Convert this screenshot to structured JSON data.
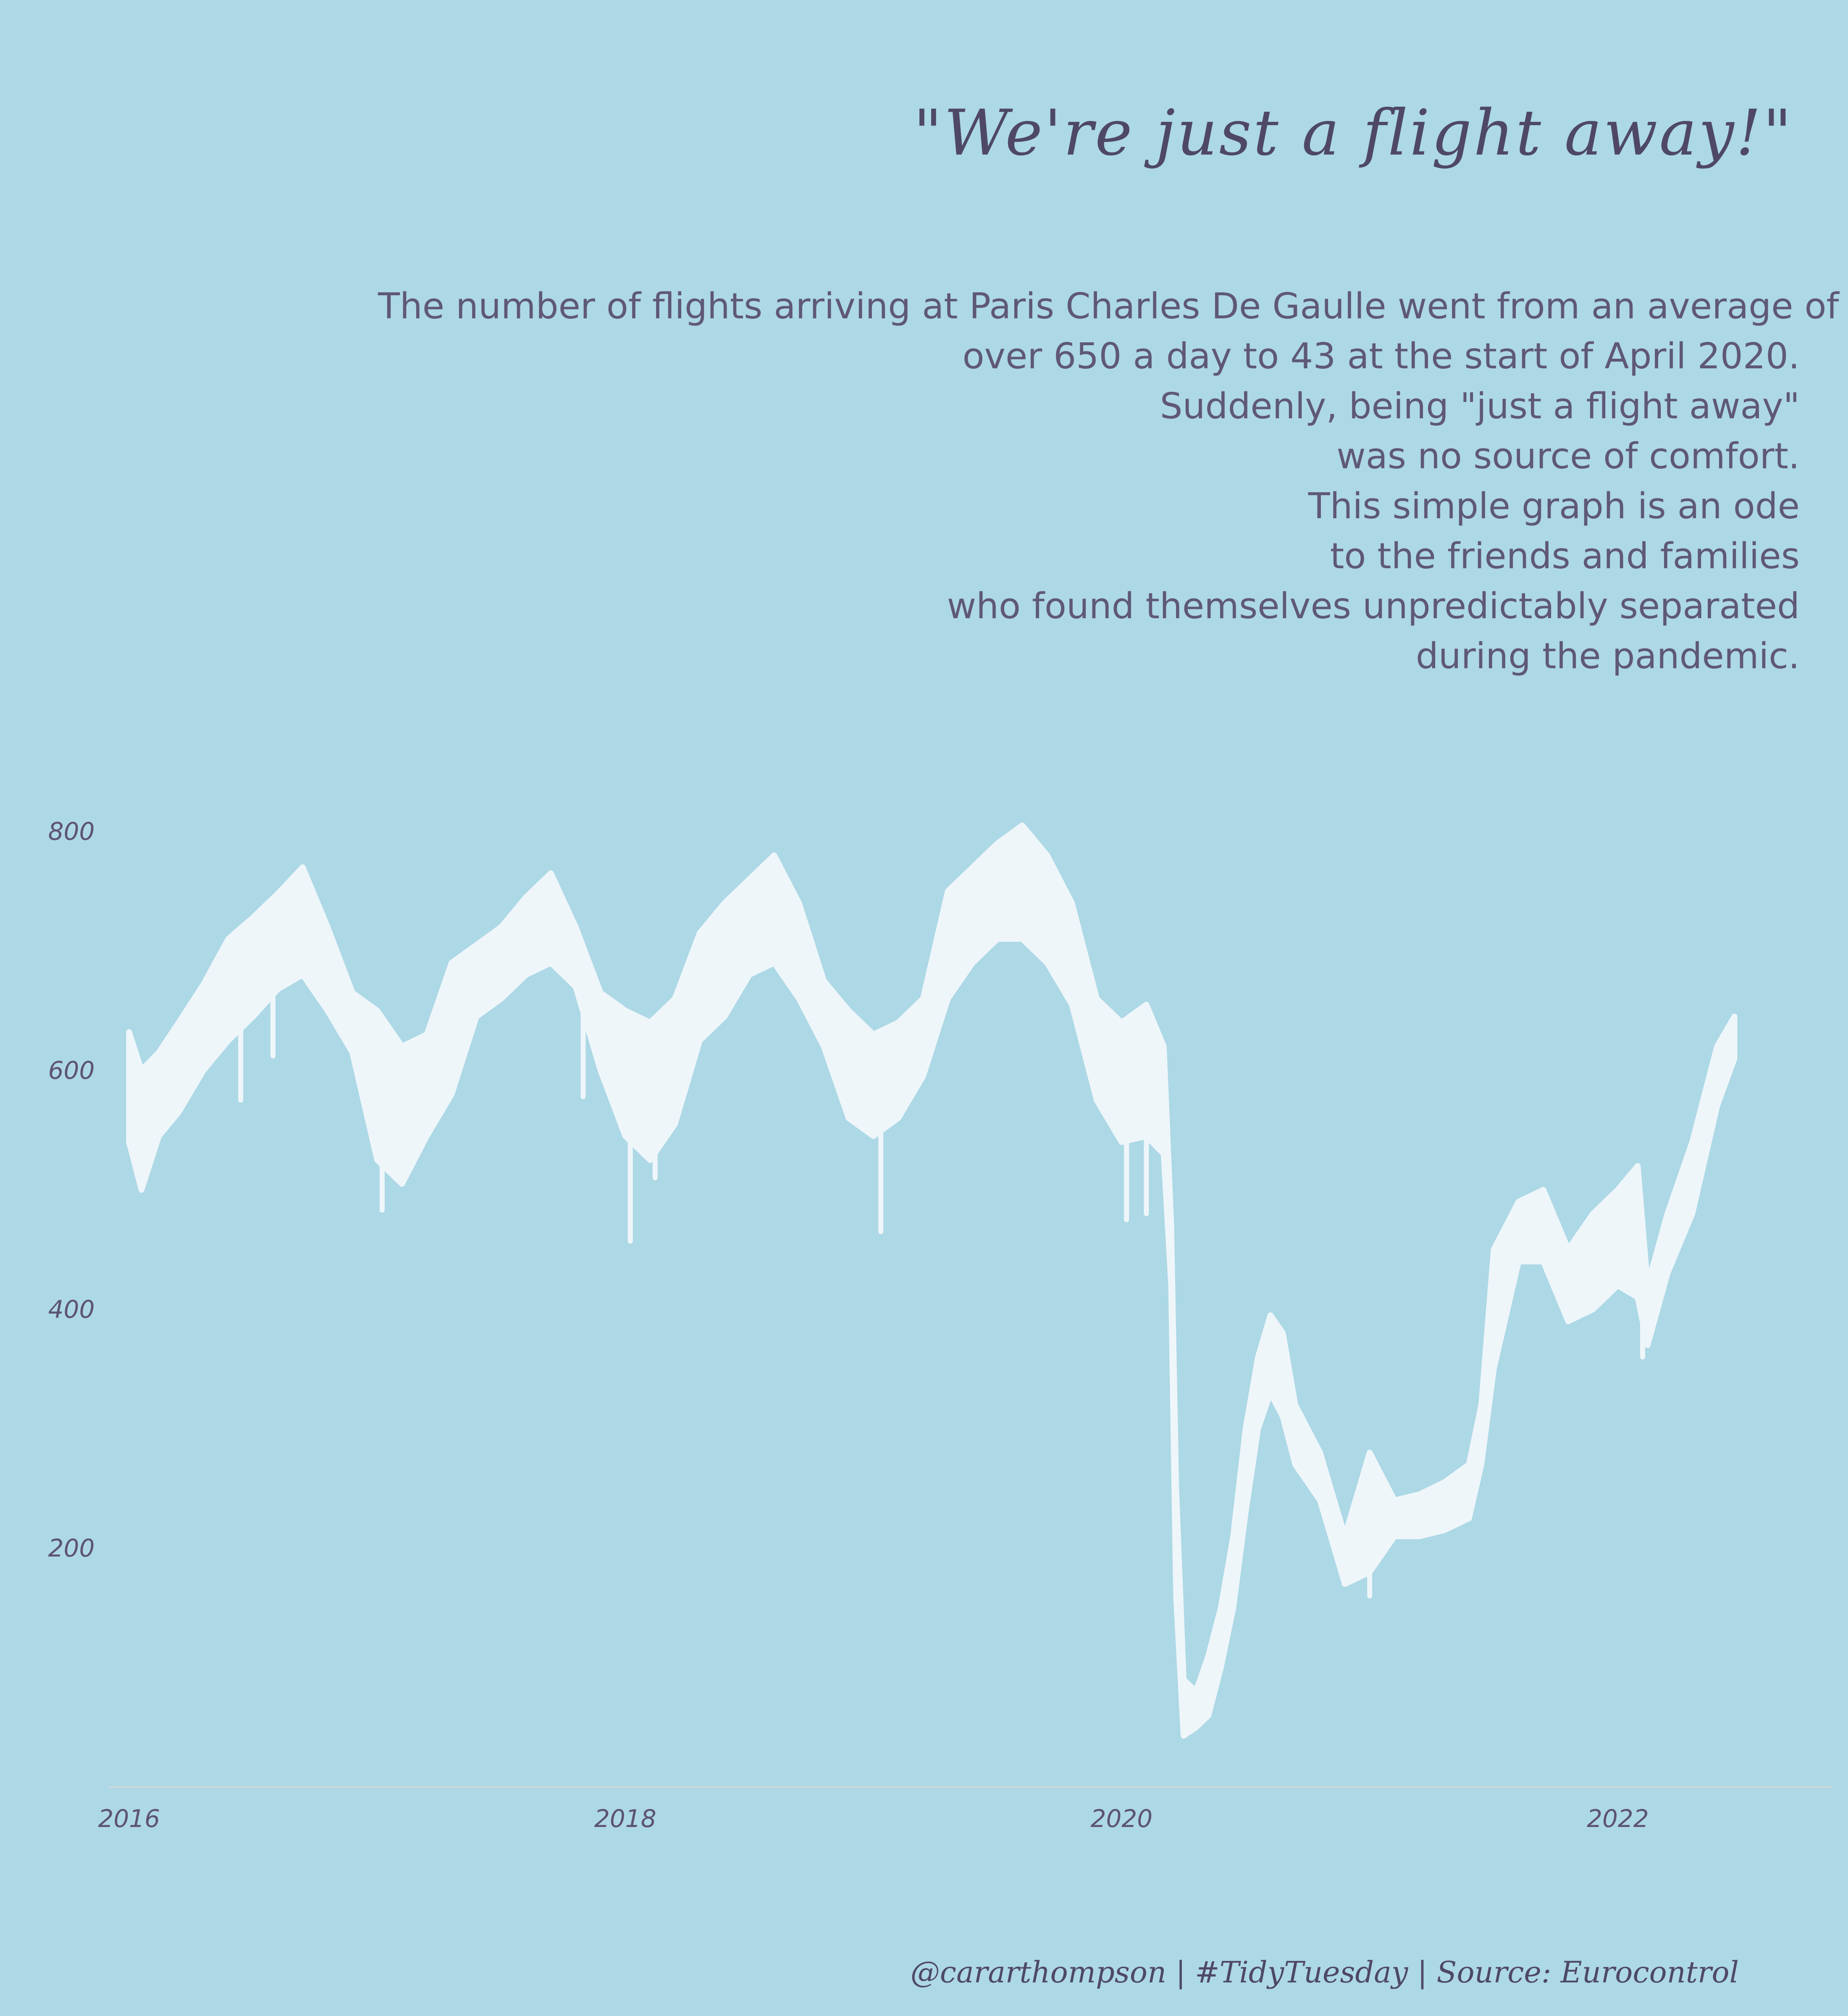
{
  "title": "\"We're just a flight away!\"",
  "subtitle_lines": [
    "The number of flights arriving at Paris Charles De Gaulle went from an average of",
    "over 650 a day to 43 at the start of April 2020.",
    "Suddenly, being \"just a flight away\"",
    "was no source of comfort.",
    "This simple graph is an ode",
    "to the friends and families",
    "who found themselves unpredictably separated",
    "during the pandemic."
  ],
  "caption": "@cararthompson | #TidyTuesday | Source: Eurocontrol",
  "colors": {
    "background": "#add8e6",
    "line": "#eef6fa",
    "text": "#5c5470",
    "axis": "#c9d7dc"
  },
  "chart_data": {
    "type": "line",
    "title": "\"We're just a flight away!\"",
    "xlabel": "",
    "ylabel": "",
    "xlim": [
      2015.92,
      2022.86
    ],
    "ylim": [
      0,
      835
    ],
    "x_ticks": [
      2016,
      2018,
      2020,
      2022
    ],
    "y_ticks": [
      200,
      400,
      600,
      800
    ],
    "grid": false,
    "legend": "none",
    "series": [
      {
        "values_note": "daily arrivals; each band shows weekly high/low envelope",
        "points": [
          {
            "x": 2016.0,
            "low": 540,
            "high": 632
          },
          {
            "x": 2016.05,
            "low": 500,
            "high": 600
          },
          {
            "x": 2016.12,
            "low": 545,
            "high": 615
          },
          {
            "x": 2016.2,
            "low": 565,
            "high": 640
          },
          {
            "x": 2016.3,
            "low": 600,
            "high": 672
          },
          {
            "x": 2016.4,
            "low": 625,
            "high": 710
          },
          {
            "x": 2016.5,
            "low": 645,
            "high": 728
          },
          {
            "x": 2016.6,
            "low": 668,
            "high": 748
          },
          {
            "x": 2016.7,
            "low": 680,
            "high": 770
          },
          {
            "x": 2016.8,
            "low": 650,
            "high": 720
          },
          {
            "x": 2016.9,
            "low": 615,
            "high": 665
          },
          {
            "x": 2017.0,
            "low": 525,
            "high": 650
          },
          {
            "x": 2017.1,
            "low": 505,
            "high": 620
          },
          {
            "x": 2017.2,
            "low": 545,
            "high": 630
          },
          {
            "x": 2017.3,
            "low": 580,
            "high": 690
          },
          {
            "x": 2017.4,
            "low": 645,
            "high": 705
          },
          {
            "x": 2017.5,
            "low": 660,
            "high": 720
          },
          {
            "x": 2017.6,
            "low": 680,
            "high": 745
          },
          {
            "x": 2017.7,
            "low": 690,
            "high": 765
          },
          {
            "x": 2017.8,
            "low": 670,
            "high": 720
          },
          {
            "x": 2017.9,
            "low": 600,
            "high": 665
          },
          {
            "x": 2018.0,
            "low": 545,
            "high": 650
          },
          {
            "x": 2018.1,
            "low": 525,
            "high": 640
          },
          {
            "x": 2018.2,
            "low": 555,
            "high": 660
          },
          {
            "x": 2018.3,
            "low": 625,
            "high": 715
          },
          {
            "x": 2018.4,
            "low": 645,
            "high": 740
          },
          {
            "x": 2018.5,
            "low": 680,
            "high": 760
          },
          {
            "x": 2018.6,
            "low": 690,
            "high": 780
          },
          {
            "x": 2018.7,
            "low": 660,
            "high": 740
          },
          {
            "x": 2018.8,
            "low": 620,
            "high": 675
          },
          {
            "x": 2018.9,
            "low": 560,
            "high": 650
          },
          {
            "x": 2019.0,
            "low": 545,
            "high": 630
          },
          {
            "x": 2019.1,
            "low": 560,
            "high": 640
          },
          {
            "x": 2019.2,
            "low": 595,
            "high": 660
          },
          {
            "x": 2019.3,
            "low": 660,
            "high": 750
          },
          {
            "x": 2019.4,
            "low": 690,
            "high": 770
          },
          {
            "x": 2019.5,
            "low": 710,
            "high": 790
          },
          {
            "x": 2019.6,
            "low": 710,
            "high": 805
          },
          {
            "x": 2019.7,
            "low": 690,
            "high": 780
          },
          {
            "x": 2019.8,
            "low": 655,
            "high": 740
          },
          {
            "x": 2019.9,
            "low": 575,
            "high": 660
          },
          {
            "x": 2020.0,
            "low": 540,
            "high": 640
          },
          {
            "x": 2020.1,
            "low": 545,
            "high": 655
          },
          {
            "x": 2020.17,
            "low": 530,
            "high": 620
          },
          {
            "x": 2020.2,
            "low": 420,
            "high": 470
          },
          {
            "x": 2020.22,
            "low": 160,
            "high": 250
          },
          {
            "x": 2020.25,
            "low": 43,
            "high": 90
          },
          {
            "x": 2020.3,
            "low": 50,
            "high": 80
          },
          {
            "x": 2020.35,
            "low": 60,
            "high": 110
          },
          {
            "x": 2020.4,
            "low": 100,
            "high": 150
          },
          {
            "x": 2020.45,
            "low": 150,
            "high": 210
          },
          {
            "x": 2020.5,
            "low": 230,
            "high": 300
          },
          {
            "x": 2020.55,
            "low": 300,
            "high": 360
          },
          {
            "x": 2020.6,
            "low": 330,
            "high": 395
          },
          {
            "x": 2020.65,
            "low": 310,
            "high": 380
          },
          {
            "x": 2020.7,
            "low": 270,
            "high": 320
          },
          {
            "x": 2020.8,
            "low": 240,
            "high": 280
          },
          {
            "x": 2020.9,
            "low": 170,
            "high": 210
          },
          {
            "x": 2021.0,
            "low": 180,
            "high": 280
          },
          {
            "x": 2021.1,
            "low": 210,
            "high": 240
          },
          {
            "x": 2021.2,
            "low": 210,
            "high": 245
          },
          {
            "x": 2021.3,
            "low": 215,
            "high": 255
          },
          {
            "x": 2021.4,
            "low": 225,
            "high": 270
          },
          {
            "x": 2021.45,
            "low": 270,
            "high": 320
          },
          {
            "x": 2021.5,
            "low": 350,
            "high": 450
          },
          {
            "x": 2021.6,
            "low": 440,
            "high": 490
          },
          {
            "x": 2021.7,
            "low": 440,
            "high": 500
          },
          {
            "x": 2021.8,
            "low": 390,
            "high": 450
          },
          {
            "x": 2021.9,
            "low": 400,
            "high": 480
          },
          {
            "x": 2022.0,
            "low": 420,
            "high": 500
          },
          {
            "x": 2022.08,
            "low": 410,
            "high": 520
          },
          {
            "x": 2022.12,
            "low": 370,
            "high": 420
          },
          {
            "x": 2022.2,
            "low": 430,
            "high": 480
          },
          {
            "x": 2022.3,
            "low": 480,
            "high": 540
          },
          {
            "x": 2022.4,
            "low": 570,
            "high": 620
          },
          {
            "x": 2022.47,
            "low": 610,
            "high": 645
          }
        ],
        "outlier_dips": [
          {
            "x": 2016.45,
            "y": 575
          },
          {
            "x": 2016.58,
            "y": 612
          },
          {
            "x": 2017.02,
            "y": 483
          },
          {
            "x": 2017.83,
            "y": 578
          },
          {
            "x": 2018.02,
            "y": 457
          },
          {
            "x": 2018.12,
            "y": 510
          },
          {
            "x": 2019.03,
            "y": 465
          },
          {
            "x": 2020.02,
            "y": 475
          },
          {
            "x": 2020.1,
            "y": 480
          },
          {
            "x": 2021.0,
            "y": 160
          },
          {
            "x": 2022.1,
            "y": 360
          }
        ]
      }
    ]
  }
}
